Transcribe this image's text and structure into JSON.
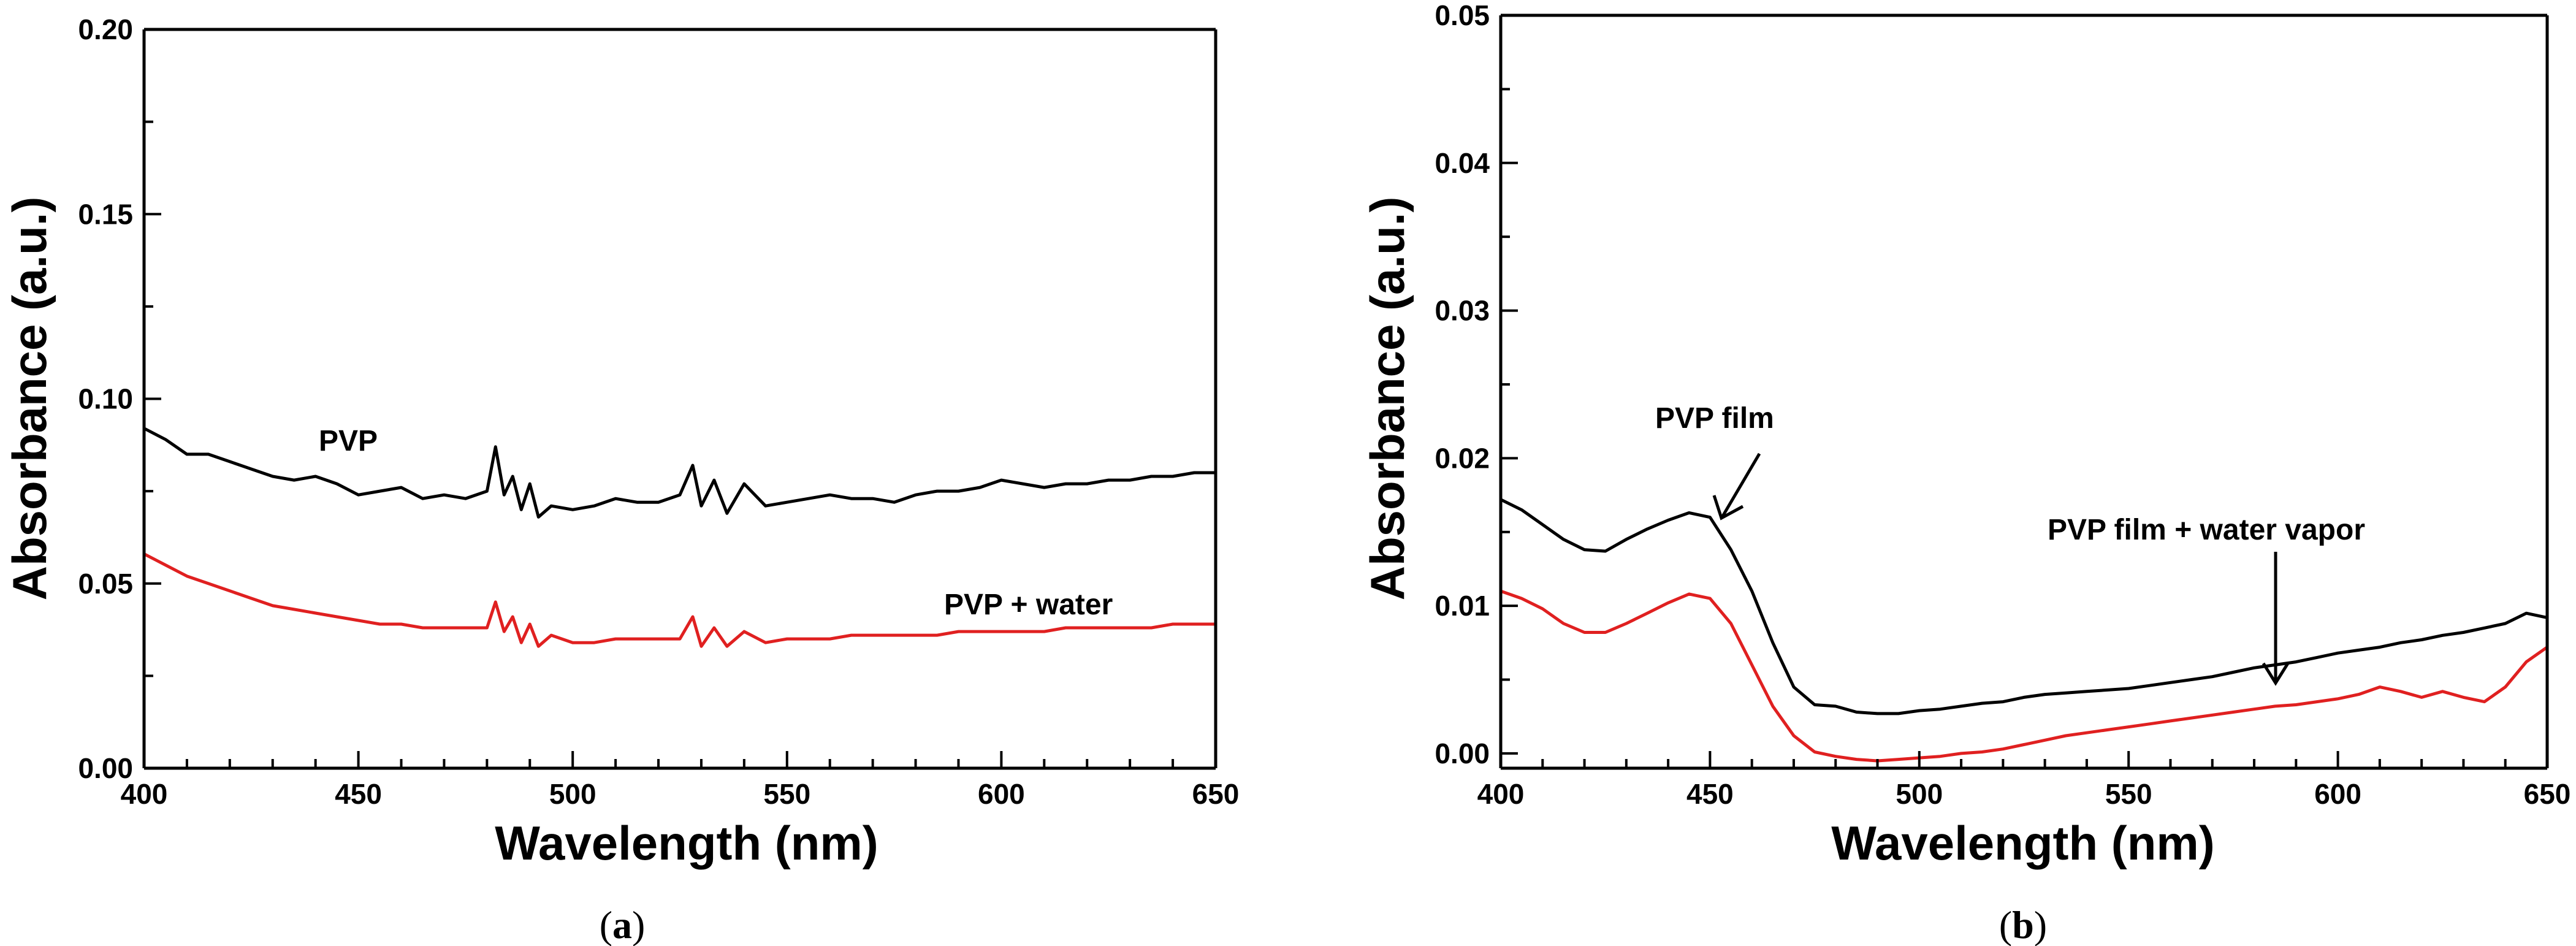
{
  "chart_data": [
    {
      "type": "line",
      "panel_label": "a",
      "xlabel": "Wavelength (nm)",
      "ylabel": "Absorbance (a.u.)",
      "xlim": [
        400,
        650
      ],
      "ylim": [
        0.0,
        0.2
      ],
      "x_ticks": [
        400,
        450,
        500,
        550,
        600,
        650
      ],
      "y_ticks": [
        0.0,
        0.05,
        0.1,
        0.15,
        0.2
      ],
      "x_tick_labels": [
        "400",
        "450",
        "500",
        "550",
        "600",
        "650"
      ],
      "y_tick_labels": [
        "0.00",
        "0.05",
        "0.10",
        "0.15",
        "0.20"
      ],
      "series": [
        {
          "name": "PVP",
          "color": "#000000",
          "x": [
            400,
            405,
            410,
            415,
            420,
            425,
            430,
            435,
            440,
            445,
            450,
            455,
            460,
            465,
            470,
            475,
            480,
            482,
            484,
            486,
            488,
            490,
            492,
            495,
            500,
            505,
            510,
            515,
            520,
            525,
            528,
            530,
            533,
            536,
            540,
            545,
            550,
            555,
            560,
            565,
            570,
            575,
            580,
            585,
            590,
            595,
            600,
            605,
            610,
            615,
            620,
            625,
            630,
            635,
            640,
            645,
            650
          ],
          "values": [
            0.092,
            0.089,
            0.085,
            0.085,
            0.083,
            0.081,
            0.079,
            0.078,
            0.079,
            0.077,
            0.074,
            0.075,
            0.076,
            0.073,
            0.074,
            0.073,
            0.075,
            0.087,
            0.074,
            0.079,
            0.07,
            0.077,
            0.068,
            0.071,
            0.07,
            0.071,
            0.073,
            0.072,
            0.072,
            0.074,
            0.082,
            0.071,
            0.078,
            0.069,
            0.077,
            0.071,
            0.072,
            0.073,
            0.074,
            0.073,
            0.073,
            0.072,
            0.074,
            0.075,
            0.075,
            0.076,
            0.078,
            0.077,
            0.076,
            0.077,
            0.077,
            0.078,
            0.078,
            0.079,
            0.079,
            0.08,
            0.08
          ]
        },
        {
          "name": "PVP + water",
          "color": "#e02020",
          "x": [
            400,
            405,
            410,
            415,
            420,
            425,
            430,
            435,
            440,
            445,
            450,
            455,
            460,
            465,
            470,
            475,
            480,
            482,
            484,
            486,
            488,
            490,
            492,
            495,
            500,
            505,
            510,
            515,
            520,
            525,
            528,
            530,
            533,
            536,
            540,
            545,
            550,
            555,
            560,
            565,
            570,
            575,
            580,
            585,
            590,
            595,
            600,
            605,
            610,
            615,
            620,
            625,
            630,
            635,
            640,
            645,
            650
          ],
          "values": [
            0.058,
            0.055,
            0.052,
            0.05,
            0.048,
            0.046,
            0.044,
            0.043,
            0.042,
            0.041,
            0.04,
            0.039,
            0.039,
            0.038,
            0.038,
            0.038,
            0.038,
            0.045,
            0.037,
            0.041,
            0.034,
            0.039,
            0.033,
            0.036,
            0.034,
            0.034,
            0.035,
            0.035,
            0.035,
            0.035,
            0.041,
            0.033,
            0.038,
            0.033,
            0.037,
            0.034,
            0.035,
            0.035,
            0.035,
            0.036,
            0.036,
            0.036,
            0.036,
            0.036,
            0.037,
            0.037,
            0.037,
            0.037,
            0.037,
            0.038,
            0.038,
            0.038,
            0.038,
            0.038,
            0.039,
            0.039,
            0.039
          ]
        }
      ],
      "annotations": [
        "PVP",
        "PVP + water"
      ]
    },
    {
      "type": "line",
      "panel_label": "b",
      "xlabel": "Wavelength (nm)",
      "ylabel": "Absorbance (a.u.)",
      "xlim": [
        400,
        650
      ],
      "ylim": [
        -0.001,
        0.05
      ],
      "x_ticks": [
        400,
        450,
        500,
        550,
        600,
        650
      ],
      "y_ticks": [
        0.0,
        0.01,
        0.02,
        0.03,
        0.04,
        0.05
      ],
      "x_tick_labels": [
        "400",
        "450",
        "500",
        "550",
        "600",
        "650"
      ],
      "y_tick_labels": [
        "0.00",
        "0.01",
        "0.02",
        "0.03",
        "0.04",
        "0.05"
      ],
      "series": [
        {
          "name": "PVP film",
          "color": "#000000",
          "x": [
            400,
            405,
            410,
            415,
            420,
            425,
            430,
            435,
            440,
            445,
            450,
            455,
            460,
            465,
            470,
            475,
            480,
            485,
            490,
            495,
            500,
            505,
            510,
            515,
            520,
            525,
            530,
            535,
            540,
            545,
            550,
            555,
            560,
            565,
            570,
            575,
            580,
            585,
            590,
            595,
            600,
            605,
            610,
            615,
            620,
            625,
            630,
            635,
            640,
            645,
            650
          ],
          "values": [
            0.0172,
            0.0165,
            0.0155,
            0.0145,
            0.0138,
            0.0137,
            0.0145,
            0.0152,
            0.0158,
            0.0163,
            0.016,
            0.0138,
            0.011,
            0.0075,
            0.0045,
            0.0033,
            0.0032,
            0.0028,
            0.0027,
            0.0027,
            0.0029,
            0.003,
            0.0032,
            0.0034,
            0.0035,
            0.0038,
            0.004,
            0.0041,
            0.0042,
            0.0043,
            0.0044,
            0.0046,
            0.0048,
            0.005,
            0.0052,
            0.0055,
            0.0058,
            0.006,
            0.0062,
            0.0065,
            0.0068,
            0.007,
            0.0072,
            0.0075,
            0.0077,
            0.008,
            0.0082,
            0.0085,
            0.0088,
            0.0095,
            0.0092
          ]
        },
        {
          "name": "PVP film + water vapor",
          "color": "#e02020",
          "x": [
            400,
            405,
            410,
            415,
            420,
            425,
            430,
            435,
            440,
            445,
            450,
            455,
            460,
            465,
            470,
            475,
            480,
            485,
            490,
            495,
            500,
            505,
            510,
            515,
            520,
            525,
            530,
            535,
            540,
            545,
            550,
            555,
            560,
            565,
            570,
            575,
            580,
            585,
            590,
            595,
            600,
            605,
            610,
            615,
            620,
            625,
            630,
            635,
            640,
            645,
            650
          ],
          "values": [
            0.011,
            0.0105,
            0.0098,
            0.0088,
            0.0082,
            0.0082,
            0.0088,
            0.0095,
            0.0102,
            0.0108,
            0.0105,
            0.0088,
            0.006,
            0.0032,
            0.0012,
            0.0001,
            -0.0002,
            -0.0004,
            -0.0005,
            -0.0004,
            -0.0003,
            -0.0002,
            0.0,
            0.0001,
            0.0003,
            0.0006,
            0.0009,
            0.0012,
            0.0014,
            0.0016,
            0.0018,
            0.002,
            0.0022,
            0.0024,
            0.0026,
            0.0028,
            0.003,
            0.0032,
            0.0033,
            0.0035,
            0.0037,
            0.004,
            0.0045,
            0.0042,
            0.0038,
            0.0042,
            0.0038,
            0.0035,
            0.0045,
            0.0062,
            0.0072
          ]
        }
      ],
      "annotations": [
        "PVP film",
        "PVP film + water vapor"
      ]
    }
  ]
}
